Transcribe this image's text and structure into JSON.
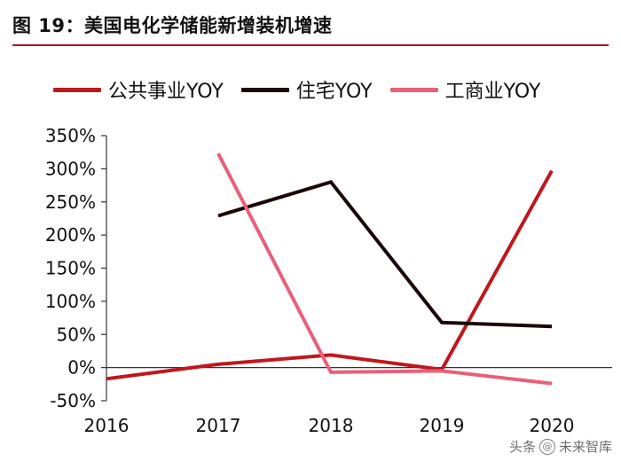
{
  "header": {
    "title": "图 19：美国电化学储能新增装机增速"
  },
  "colors": {
    "utility": "#c0171e",
    "residential": "#1a0808",
    "commercial": "#e8607a",
    "accent": "#b5121b"
  },
  "chart_data": {
    "type": "line",
    "title": "图 19：美国电化学储能新增装机增速",
    "xlabel": "",
    "ylabel": "",
    "categories": [
      "2016",
      "2017",
      "2018",
      "2019",
      "2020"
    ],
    "ylim": [
      -50,
      350
    ],
    "yticks": [
      "350%",
      "300%",
      "250%",
      "200%",
      "150%",
      "100%",
      "50%",
      "0%",
      "-50%"
    ],
    "ytick_values": [
      350,
      300,
      250,
      200,
      150,
      100,
      50,
      0,
      -50
    ],
    "legend_position": "top",
    "series": [
      {
        "name": "公共事业YOY",
        "color": "#c0171e",
        "values": [
          -17,
          5,
          19,
          -3,
          297
        ]
      },
      {
        "name": "住宅YOY",
        "color": "#1a0808",
        "values": [
          null,
          229,
          280,
          68,
          62
        ]
      },
      {
        "name": "工商业YOY",
        "color": "#e8607a",
        "values": [
          null,
          323,
          -7,
          -5,
          -24
        ]
      }
    ]
  },
  "watermark": {
    "prefix": "头条",
    "icon": "@",
    "name": "未来智库"
  }
}
